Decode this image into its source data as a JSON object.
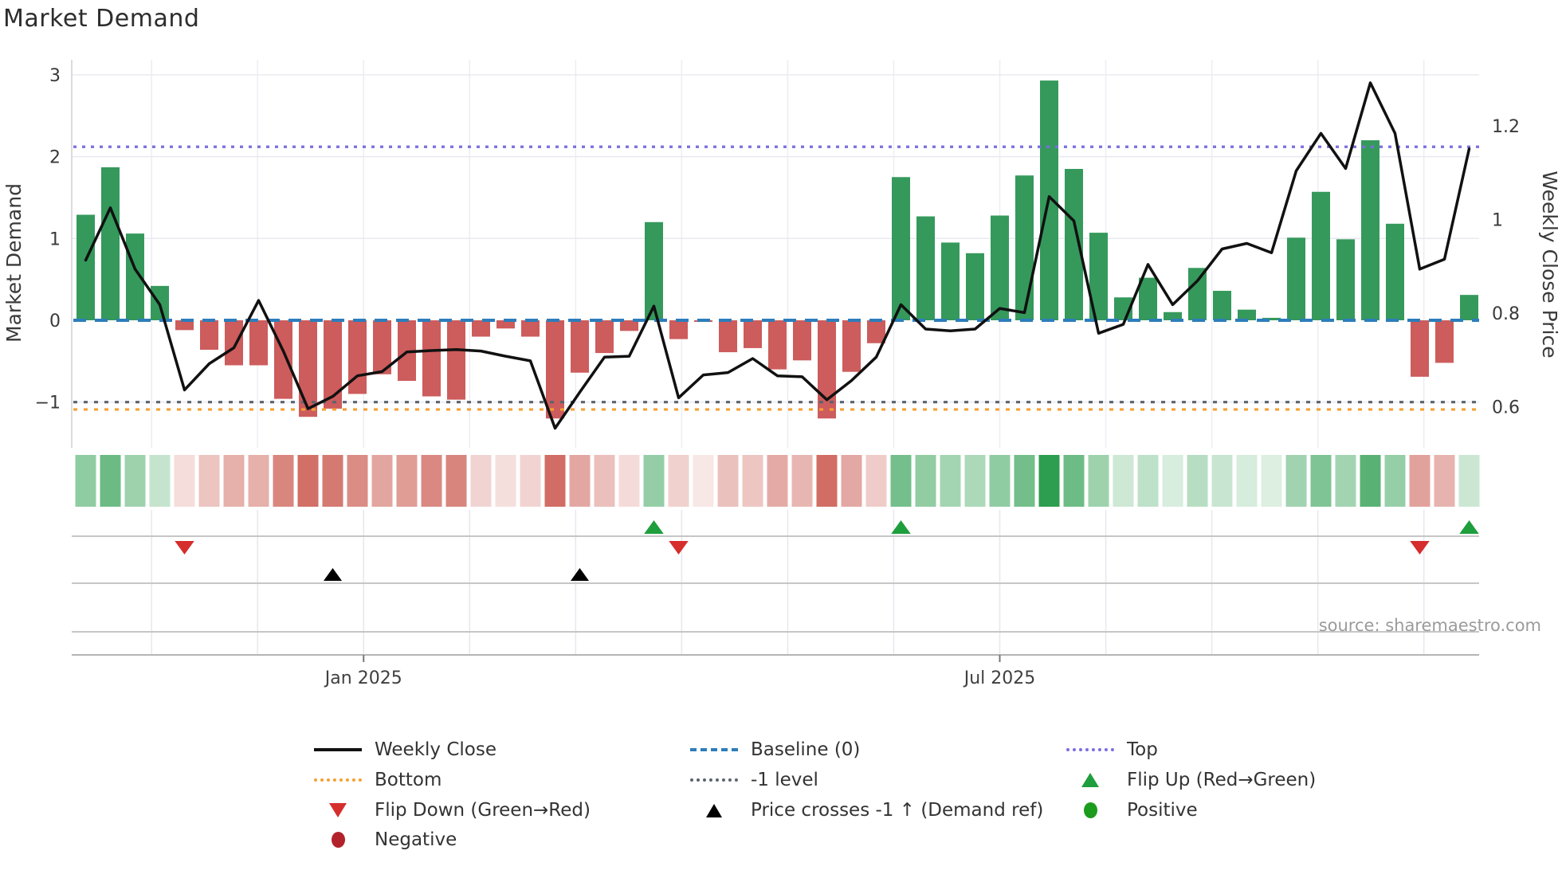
{
  "title": "Market Demand",
  "source": "source: sharemaestro.com",
  "axes": {
    "left_label": "Market Demand",
    "right_label": "Weekly Close Price",
    "left_ticks": [
      {
        "value": 3,
        "label": "3"
      },
      {
        "value": 2,
        "label": "2"
      },
      {
        "value": 1,
        "label": "1"
      },
      {
        "value": 0,
        "label": "0"
      },
      {
        "value": -1,
        "label": "−1"
      }
    ],
    "right_ticks": [
      {
        "value": 1.2,
        "label": "1.2"
      },
      {
        "value": 1.0,
        "label": "1"
      },
      {
        "value": 0.8,
        "label": "0.8"
      },
      {
        "value": 0.6,
        "label": "0.6"
      }
    ]
  },
  "chart_data": {
    "type": "bar+line",
    "title": "Market Demand",
    "ylabel_left": "Market Demand",
    "ylabel_right": "Weekly Close Price",
    "ylim_left": [
      -1.56,
      3.18
    ],
    "ylim_right": [
      0.512,
      1.341
    ],
    "grid": true,
    "x_axis": {
      "ticks": [
        {
          "label": "Jan 2025",
          "week_index": 11.25
        },
        {
          "label": "Jul 2025",
          "week_index": 37.0
        }
      ]
    },
    "series": [
      {
        "name": "Market Demand (weekly bars)",
        "type": "bar",
        "values": [
          1.29,
          1.87,
          1.06,
          0.42,
          -0.12,
          -0.36,
          -0.55,
          -0.55,
          -0.96,
          -1.18,
          -1.08,
          -0.9,
          -0.66,
          -0.74,
          -0.93,
          -0.97,
          -0.2,
          -0.1,
          -0.2,
          -1.2,
          -0.64,
          -0.4,
          -0.13,
          1.2,
          -0.23,
          -0.02,
          -0.39,
          -0.34,
          -0.6,
          -0.49,
          -1.2,
          -0.63,
          -0.28,
          1.75,
          1.27,
          0.95,
          0.82,
          1.28,
          1.77,
          2.93,
          1.85,
          1.07,
          0.28,
          0.52,
          0.1,
          0.64,
          0.36,
          0.13,
          0.03,
          1.01,
          1.57,
          0.99,
          2.2,
          1.18,
          -0.69,
          -0.52,
          0.31
        ]
      },
      {
        "name": "Weekly Close",
        "type": "line",
        "values": [
          0.913,
          1.025,
          0.894,
          0.818,
          0.636,
          0.692,
          0.726,
          0.827,
          0.719,
          0.596,
          0.622,
          0.666,
          0.675,
          0.717,
          0.72,
          0.722,
          0.719,
          0.708,
          0.698,
          0.554,
          0.631,
          0.706,
          0.708,
          0.815,
          0.619,
          0.668,
          0.673,
          0.703,
          0.666,
          0.664,
          0.615,
          0.656,
          0.706,
          0.818,
          0.766,
          0.762,
          0.766,
          0.81,
          0.801,
          1.049,
          0.997,
          0.757,
          0.776,
          0.904,
          0.818,
          0.869,
          0.937,
          0.949,
          0.929,
          1.104,
          1.184,
          1.109,
          1.292,
          1.184,
          0.894,
          0.915,
          1.151
        ]
      }
    ],
    "reference_lines": {
      "baseline": 0,
      "top": 2.12,
      "bottom": -1.09,
      "minus1_level": -1.0
    },
    "markers": {
      "flip_up_weeks": [
        23,
        33,
        56
      ],
      "flip_down_weeks": [
        4,
        24,
        54
      ],
      "price_cross_minus1_weeks": [
        10,
        20
      ]
    },
    "heatmap_strip": "same 57 weekly demand values, white→green for positive, white→red for negative"
  },
  "legend": {
    "items": [
      {
        "label": "Weekly Close",
        "swatch": "line-solid-black",
        "col": 0,
        "row": 0
      },
      {
        "label": "Baseline (0)",
        "swatch": "line-dashed-blue",
        "col": 1,
        "row": 0
      },
      {
        "label": "Top",
        "swatch": "line-dotted-purple",
        "col": 2,
        "row": 0
      },
      {
        "label": "Bottom",
        "swatch": "line-dotted-orange",
        "col": 0,
        "row": 1
      },
      {
        "label": "-1 level",
        "swatch": "line-dotted-gray",
        "col": 1,
        "row": 1
      },
      {
        "label": "Flip Up (Red→Green)",
        "swatch": "triangle-up-green",
        "col": 2,
        "row": 1
      },
      {
        "label": "Flip Down (Green→Red)",
        "swatch": "triangle-down-red",
        "col": 0,
        "row": 2
      },
      {
        "label": "Price crosses -1 ↑ (Demand ref)",
        "swatch": "triangle-up-black",
        "col": 1,
        "row": 2
      },
      {
        "label": "Positive",
        "swatch": "circle-green",
        "col": 2,
        "row": 2
      },
      {
        "label": "Negative",
        "swatch": "circle-darkred",
        "col": 0,
        "row": 3
      }
    ]
  },
  "colors": {
    "bar_positive": "#35995c",
    "bar_negative": "#cd5c5c",
    "weekly_close_line": "#111111",
    "baseline": "#2d7dbb",
    "top_line": "#7a6ee0",
    "bottom_line": "#f5a033",
    "minus1_line": "#5a646e",
    "flip_up": "#1f9e3d",
    "flip_down": "#d62d2d",
    "price_cross": "#000000",
    "positive_dot": "#1c9c1c",
    "negative_dot": "#b2222b",
    "heat_green": "#2d9e4f",
    "heat_red": "#cd6157"
  }
}
